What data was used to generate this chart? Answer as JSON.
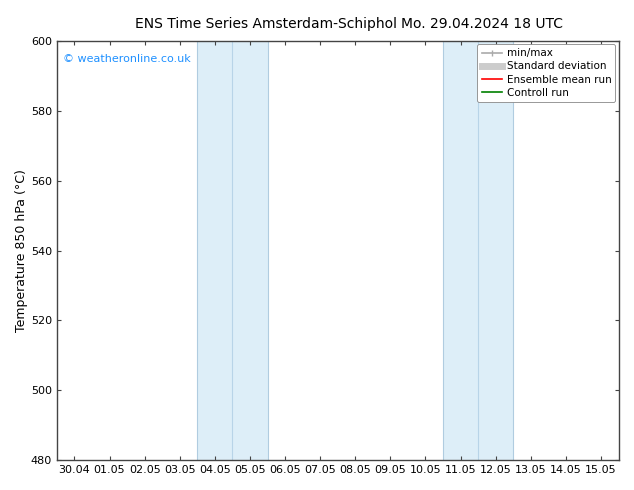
{
  "title_left": "ENS Time Series Amsterdam-Schiphol",
  "title_right": "Mo. 29.04.2024 18 UTC",
  "ylabel": "Temperature 850 hPa (°C)",
  "ylim": [
    480,
    600
  ],
  "yticks": [
    480,
    500,
    520,
    540,
    560,
    580,
    600
  ],
  "xtick_labels": [
    "30.04",
    "01.05",
    "02.05",
    "03.05",
    "04.05",
    "05.05",
    "06.05",
    "07.05",
    "08.05",
    "09.05",
    "10.05",
    "11.05",
    "12.05",
    "13.05",
    "14.05",
    "15.05"
  ],
  "shade_bands": [
    {
      "start": 4,
      "end": 6
    },
    {
      "start": 11,
      "end": 13
    }
  ],
  "shade_dividers": [
    5,
    12
  ],
  "shade_color": "#ddeef8",
  "watermark": "© weatheronline.co.uk",
  "watermark_color": "#1e90ff",
  "background_color": "#ffffff",
  "border_color": "#444444",
  "legend_items": [
    {
      "label": "min/max",
      "color": "#aaaaaa",
      "lw": 1.2
    },
    {
      "label": "Standard deviation",
      "color": "#cccccc",
      "lw": 5
    },
    {
      "label": "Ensemble mean run",
      "color": "red",
      "lw": 1.2
    },
    {
      "label": "Controll run",
      "color": "green",
      "lw": 1.2
    }
  ],
  "title_fontsize": 10,
  "axis_label_fontsize": 9,
  "tick_fontsize": 8,
  "legend_fontsize": 7.5
}
